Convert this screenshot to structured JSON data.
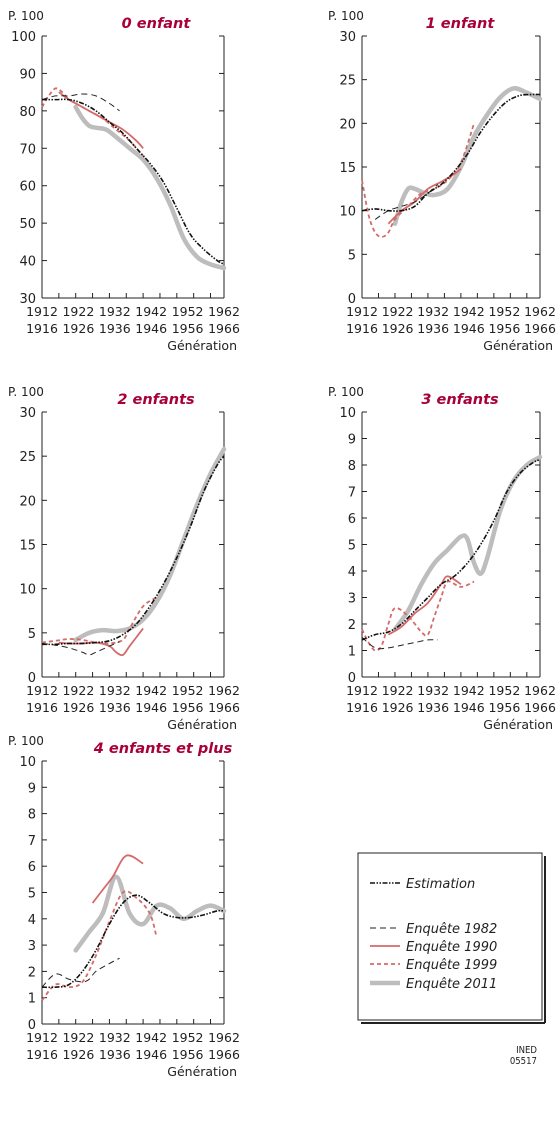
{
  "colors": {
    "estimation": "#111111",
    "e1982": "#222222",
    "e1990": "#d46a6a",
    "e1999": "#d46a6a",
    "e2011": "#bdbdbd",
    "title": "#a8003a"
  },
  "credit": [
    "INED",
    "05517"
  ],
  "chart_data": [
    {
      "type": "line",
      "title": "0 enfant",
      "unit": "P. 100",
      "xlabel": "Génération",
      "xlim": [
        1912,
        1966
      ],
      "ylim": [
        30,
        100
      ],
      "yticks": [
        30,
        40,
        50,
        60,
        70,
        80,
        90,
        100
      ],
      "xticklabels": [
        [
          "1912",
          "1916"
        ],
        [
          "1922",
          "1926"
        ],
        [
          "1932",
          "1936"
        ],
        [
          "1942",
          "1946"
        ],
        [
          "1952",
          "1956"
        ],
        [
          "1962",
          "1966"
        ]
      ],
      "series": [
        {
          "key": "estimation",
          "x": [
            1912,
            1916,
            1920,
            1924,
            1928,
            1932,
            1936,
            1940,
            1944,
            1948,
            1952,
            1956,
            1960,
            1964,
            1966
          ],
          "y": [
            83,
            83,
            83,
            82,
            80,
            77,
            74,
            70,
            66,
            61,
            54,
            47,
            43,
            40,
            39
          ]
        },
        {
          "key": "e1982",
          "x": [
            1912,
            1916,
            1920,
            1924,
            1928,
            1932,
            1935
          ],
          "y": [
            83,
            84,
            84,
            84.5,
            84,
            82,
            80
          ]
        },
        {
          "key": "e1990",
          "x": [
            1917,
            1920,
            1924,
            1928,
            1932,
            1936,
            1940,
            1942
          ],
          "y": [
            85,
            83,
            81,
            79,
            77,
            75,
            72,
            70
          ]
        },
        {
          "key": "e1999",
          "x": [
            1912,
            1914,
            1916,
            1918,
            1920,
            1922,
            1926,
            1930,
            1934,
            1938,
            1942
          ],
          "y": [
            81,
            84,
            86,
            85,
            83,
            82,
            80,
            78,
            75,
            72,
            68
          ]
        },
        {
          "key": "e2011",
          "x": [
            1922,
            1924,
            1926,
            1928,
            1931,
            1934,
            1938,
            1942,
            1946,
            1950,
            1954,
            1958,
            1962,
            1966
          ],
          "y": [
            81,
            78,
            76,
            75.5,
            75,
            73,
            70,
            67,
            62,
            55,
            46,
            41,
            39,
            38
          ]
        }
      ]
    },
    {
      "type": "line",
      "title": "1 enfant",
      "unit": "P. 100",
      "xlabel": "Génération",
      "xlim": [
        1912,
        1966
      ],
      "ylim": [
        0,
        30
      ],
      "yticks": [
        0,
        5,
        10,
        15,
        20,
        25,
        30
      ],
      "xticklabels": [
        [
          "1912",
          "1916"
        ],
        [
          "1922",
          "1926"
        ],
        [
          "1932",
          "1936"
        ],
        [
          "1942",
          "1946"
        ],
        [
          "1952",
          "1956"
        ],
        [
          "1962",
          "1966"
        ]
      ],
      "series": [
        {
          "key": "estimation",
          "x": [
            1912,
            1916,
            1920,
            1924,
            1928,
            1932,
            1936,
            1940,
            1944,
            1948,
            1952,
            1956,
            1960,
            1964,
            1966
          ],
          "y": [
            10,
            10.2,
            10,
            10,
            10.5,
            12,
            13,
            14.5,
            16.5,
            19,
            21,
            22.5,
            23.2,
            23.3,
            23.3
          ]
        },
        {
          "key": "e1982",
          "x": [
            1916,
            1920,
            1924,
            1928,
            1932,
            1935
          ],
          "y": [
            9,
            10,
            10.5,
            11,
            12,
            13
          ]
        },
        {
          "key": "e1990",
          "x": [
            1920,
            1924,
            1928,
            1932,
            1936,
            1940,
            1942
          ],
          "y": [
            8.5,
            10,
            11,
            12.5,
            13.3,
            14.2,
            14.8
          ]
        },
        {
          "key": "e1999",
          "x": [
            1912,
            1914,
            1916,
            1918,
            1920,
            1922,
            1926,
            1930,
            1934,
            1938,
            1942,
            1946
          ],
          "y": [
            13.5,
            9.5,
            7.5,
            7,
            7.5,
            9,
            10.5,
            12,
            12.5,
            13.5,
            15.5,
            20
          ]
        },
        {
          "key": "e2011",
          "x": [
            1922,
            1924,
            1926,
            1928,
            1931,
            1934,
            1938,
            1942,
            1946,
            1950,
            1954,
            1958,
            1962,
            1966
          ],
          "y": [
            8.5,
            11,
            12.5,
            12.5,
            12,
            11.8,
            12.5,
            15,
            18.5,
            21,
            23,
            24,
            23.5,
            22.8
          ]
        }
      ]
    },
    {
      "type": "line",
      "title": "2 enfants",
      "unit": "P. 100",
      "xlabel": "Génération",
      "xlim": [
        1912,
        1966
      ],
      "ylim": [
        0,
        30
      ],
      "yticks": [
        0,
        5,
        10,
        15,
        20,
        25,
        30
      ],
      "xticklabels": [
        [
          "1912",
          "1916"
        ],
        [
          "1922",
          "1926"
        ],
        [
          "1932",
          "1936"
        ],
        [
          "1942",
          "1946"
        ],
        [
          "1952",
          "1956"
        ],
        [
          "1962",
          "1966"
        ]
      ],
      "series": [
        {
          "key": "estimation",
          "x": [
            1912,
            1916,
            1920,
            1924,
            1928,
            1932,
            1936,
            1940,
            1944,
            1948,
            1952,
            1956,
            1960,
            1964,
            1966
          ],
          "y": [
            3.7,
            3.7,
            3.8,
            3.8,
            3.9,
            4.1,
            4.8,
            6,
            8,
            10.5,
            13.5,
            17,
            21,
            24,
            25
          ]
        },
        {
          "key": "e1982",
          "x": [
            1912,
            1916,
            1920,
            1924,
            1926,
            1928,
            1932,
            1935
          ],
          "y": [
            3.8,
            3.6,
            3.3,
            2.8,
            2.5,
            2.8,
            3.5,
            4
          ]
        },
        {
          "key": "e1990",
          "x": [
            1917,
            1920,
            1924,
            1928,
            1932,
            1934,
            1936,
            1938,
            1942
          ],
          "y": [
            3.9,
            3.8,
            3.8,
            3.9,
            3.5,
            2.8,
            2.5,
            3.5,
            5.5
          ]
        },
        {
          "key": "e1999",
          "x": [
            1912,
            1916,
            1920,
            1924,
            1928,
            1932,
            1936,
            1938,
            1942,
            1946
          ],
          "y": [
            3.9,
            4.1,
            4.3,
            4.2,
            3.9,
            3.8,
            4.2,
            5.5,
            8,
            9
          ]
        },
        {
          "key": "e2011",
          "x": [
            1922,
            1926,
            1930,
            1934,
            1938,
            1942,
            1946,
            1950,
            1954,
            1958,
            1962,
            1966
          ],
          "y": [
            4.2,
            5,
            5.3,
            5.2,
            5.5,
            6.5,
            8.5,
            11.5,
            15.5,
            19.5,
            23,
            25.8
          ]
        }
      ]
    },
    {
      "type": "line",
      "title": "3 enfants",
      "unit": "P. 100",
      "xlabel": "Génération",
      "xlim": [
        1912,
        1966
      ],
      "ylim": [
        0,
        10
      ],
      "yticks": [
        0,
        1,
        2,
        3,
        4,
        5,
        6,
        7,
        8,
        9,
        10
      ],
      "xticklabels": [
        [
          "1912",
          "1916"
        ],
        [
          "1922",
          "1926"
        ],
        [
          "1932",
          "1936"
        ],
        [
          "1942",
          "1946"
        ],
        [
          "1952",
          "1956"
        ],
        [
          "1962",
          "1966"
        ]
      ],
      "series": [
        {
          "key": "estimation",
          "x": [
            1912,
            1916,
            1920,
            1924,
            1928,
            1932,
            1936,
            1940,
            1944,
            1948,
            1952,
            1956,
            1960,
            1964,
            1966
          ],
          "y": [
            1.4,
            1.6,
            1.7,
            2,
            2.5,
            3,
            3.5,
            3.8,
            4.3,
            5,
            5.9,
            7,
            7.7,
            8.1,
            8.2
          ]
        },
        {
          "key": "e1982",
          "x": [
            1912,
            1916,
            1920,
            1924,
            1928,
            1932,
            1935
          ],
          "y": [
            1.5,
            1.1,
            1.1,
            1.2,
            1.3,
            1.4,
            1.4
          ]
        },
        {
          "key": "e1990",
          "x": [
            1920,
            1924,
            1928,
            1932,
            1936,
            1938,
            1942
          ],
          "y": [
            1.6,
            1.9,
            2.4,
            2.8,
            3.5,
            3.8,
            3.5
          ]
        },
        {
          "key": "e1999",
          "x": [
            1912,
            1914,
            1916,
            1918,
            1920,
            1922,
            1926,
            1930,
            1932,
            1934,
            1936,
            1938,
            1942,
            1946
          ],
          "y": [
            1.8,
            1.3,
            1.0,
            1.2,
            2.0,
            2.6,
            2.3,
            1.7,
            1.6,
            2.3,
            3,
            3.6,
            3.4,
            3.6
          ]
        },
        {
          "key": "e2011",
          "x": [
            1922,
            1926,
            1930,
            1934,
            1938,
            1942,
            1944,
            1946,
            1948,
            1950,
            1954,
            1958,
            1962,
            1966
          ],
          "y": [
            1.8,
            2.5,
            3.5,
            4.3,
            4.8,
            5.3,
            5.2,
            4.3,
            3.9,
            4.5,
            6.3,
            7.4,
            8,
            8.3
          ]
        }
      ]
    },
    {
      "type": "line",
      "title": "4 enfants et plus",
      "unit": "P. 100",
      "xlabel": "Génération",
      "xlim": [
        1912,
        1966
      ],
      "ylim": [
        0,
        10
      ],
      "yticks": [
        0,
        1,
        2,
        3,
        4,
        5,
        6,
        7,
        8,
        9,
        10
      ],
      "xticklabels": [
        [
          "1912",
          "1916"
        ],
        [
          "1922",
          "1926"
        ],
        [
          "1932",
          "1936"
        ],
        [
          "1942",
          "1946"
        ],
        [
          "1952",
          "1956"
        ],
        [
          "1962",
          "1966"
        ]
      ],
      "series": [
        {
          "key": "estimation",
          "x": [
            1912,
            1916,
            1920,
            1924,
            1928,
            1932,
            1936,
            1940,
            1944,
            1948,
            1952,
            1956,
            1960,
            1964,
            1966
          ],
          "y": [
            1.4,
            1.4,
            1.5,
            2,
            2.8,
            3.8,
            4.6,
            4.9,
            4.6,
            4.2,
            4.05,
            4.05,
            4.15,
            4.3,
            4.3
          ]
        },
        {
          "key": "e1982",
          "x": [
            1912,
            1916,
            1920,
            1924,
            1926,
            1928,
            1932,
            1935
          ],
          "y": [
            1.4,
            1.9,
            1.7,
            1.6,
            1.7,
            2,
            2.3,
            2.5
          ]
        },
        {
          "key": "e1990",
          "x": [
            1927,
            1930,
            1933,
            1937,
            1942
          ],
          "y": [
            4.6,
            5.1,
            5.6,
            6.4,
            6.1
          ]
        },
        {
          "key": "e1999",
          "x": [
            1912,
            1916,
            1920,
            1924,
            1928,
            1932,
            1936,
            1940,
            1944,
            1946
          ],
          "y": [
            0.9,
            1.5,
            1.4,
            1.6,
            2.6,
            3.9,
            5.0,
            4.8,
            4.2,
            3.3
          ]
        },
        {
          "key": "e2011",
          "x": [
            1922,
            1926,
            1930,
            1934,
            1938,
            1942,
            1946,
            1950,
            1954,
            1958,
            1962,
            1966
          ],
          "y": [
            2.8,
            3.5,
            4.2,
            5.6,
            4.2,
            3.8,
            4.5,
            4.4,
            4.0,
            4.3,
            4.5,
            4.3
          ]
        }
      ]
    }
  ],
  "legend": [
    {
      "key": "estimation",
      "label": "Estimation"
    },
    {
      "key": "e1982",
      "label": "Enquête 1982"
    },
    {
      "key": "e1990",
      "label": "Enquête 1990"
    },
    {
      "key": "e1999",
      "label": "Enquête 1999"
    },
    {
      "key": "e2011",
      "label": "Enquête 2011"
    }
  ]
}
